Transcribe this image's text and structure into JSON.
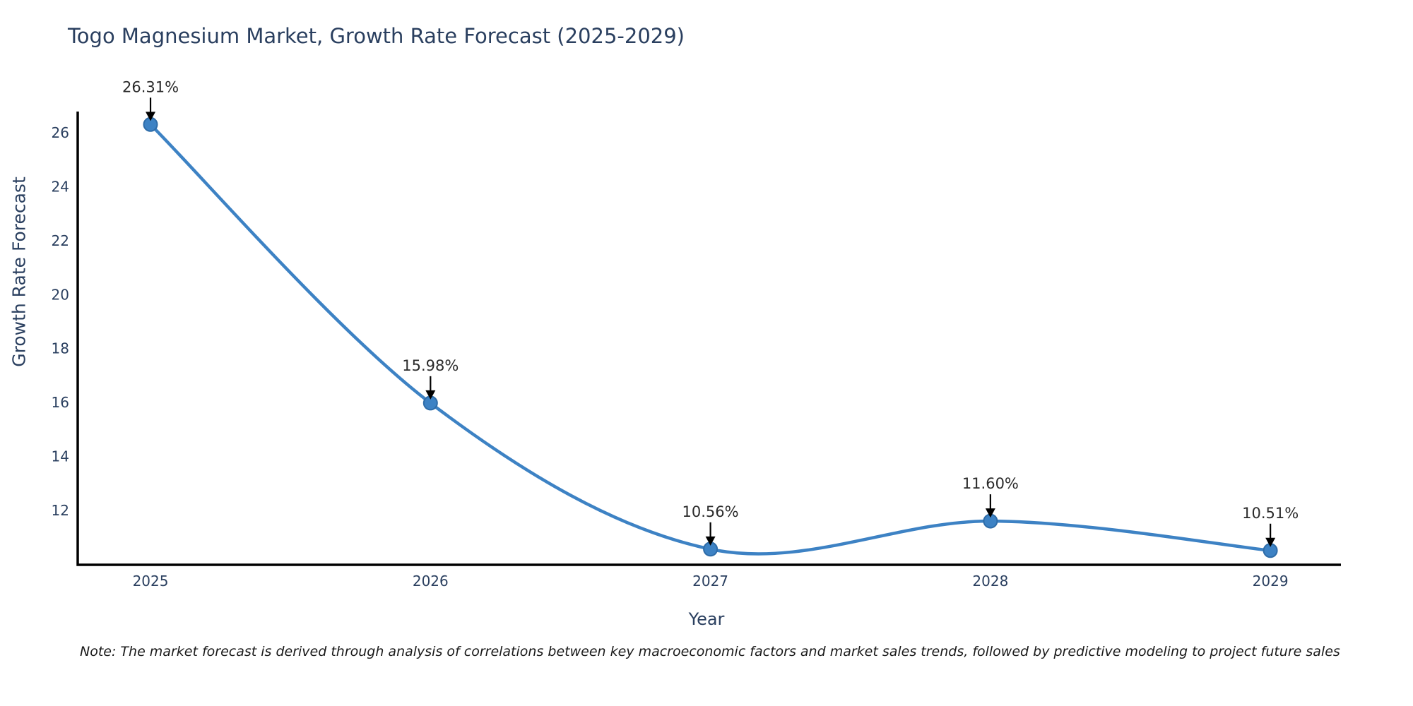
{
  "chart_data": {
    "type": "line",
    "title": "Togo Magnesium Market, Growth Rate Forecast (2025-2029)",
    "xlabel": "Year",
    "ylabel": "Growth Rate Forecast",
    "x": [
      2025,
      2026,
      2027,
      2028,
      2029
    ],
    "values": [
      26.31,
      15.98,
      10.56,
      11.6,
      10.51
    ],
    "point_labels": [
      "26.31%",
      "15.98%",
      "10.56%",
      "11.60%",
      "10.51%"
    ],
    "yticks": [
      12,
      14,
      16,
      18,
      20,
      22,
      24,
      26
    ],
    "ylim": [
      9.98,
      26.79
    ],
    "xlim": [
      2024.74,
      2029.252
    ],
    "line_shape": "spline",
    "grid": false,
    "legend": "none",
    "colors": {
      "line": "#3d82c4",
      "marker": "#3d82c4",
      "marker_edge": "#2e6ca8",
      "axis": "#000000",
      "tick_text": "#2a3f5f",
      "annotation_text": "#2b2b2b",
      "arrow": "#000000"
    },
    "note": "Note: The market forecast is derived through analysis of correlations between key macroeconomic factors and market sales trends, followed by predictive modeling to project future sales"
  }
}
